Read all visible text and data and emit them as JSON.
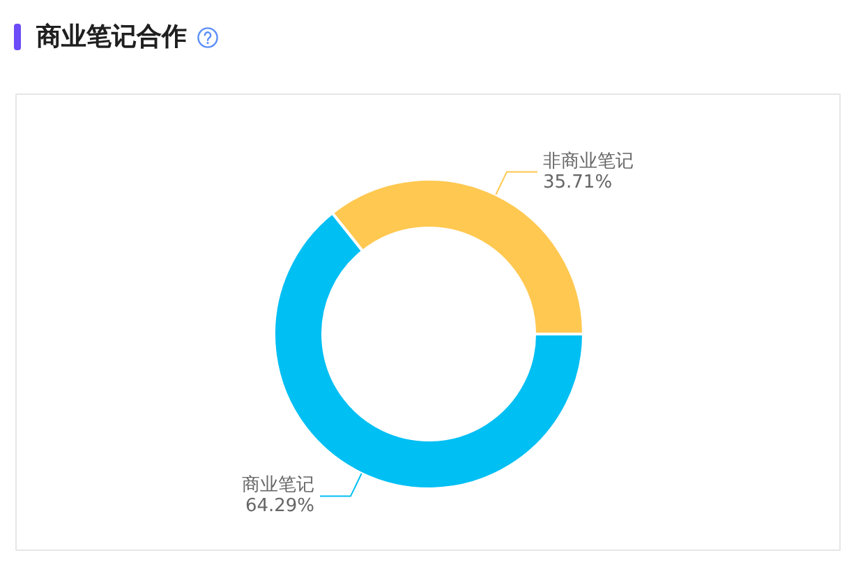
{
  "chart_data": {
    "type": "donut",
    "title": "商业笔记合作",
    "categories": [
      "非商业笔记",
      "商业笔记"
    ],
    "values": [
      35.71,
      64.29
    ],
    "colors": [
      "#ffc850",
      "#00bff3"
    ],
    "value_labels": [
      "35.71%",
      "64.29%"
    ]
  }
}
